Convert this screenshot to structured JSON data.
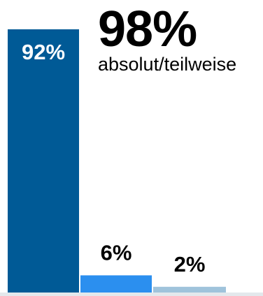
{
  "chart_data": {
    "type": "bar",
    "categories": [
      "",
      "",
      ""
    ],
    "values": [
      92,
      6,
      2
    ],
    "data_labels": [
      "92%",
      "6%",
      "2%"
    ],
    "ylim": [
      0,
      100
    ],
    "title": "",
    "xlabel": "",
    "ylabel": "",
    "grid": false,
    "legend": "none",
    "colors": [
      "#005a96",
      "#2b8fef",
      "#9fc3db"
    ],
    "label_colors": [
      "#ffffff",
      "#000000",
      "#000000"
    ],
    "label_position": [
      "inside-top",
      "above",
      "above"
    ]
  },
  "headline": {
    "value": "98%",
    "caption": "absolut/teilweise"
  },
  "colors": {
    "baseline": "#e3e8ec",
    "text": "#000000"
  }
}
